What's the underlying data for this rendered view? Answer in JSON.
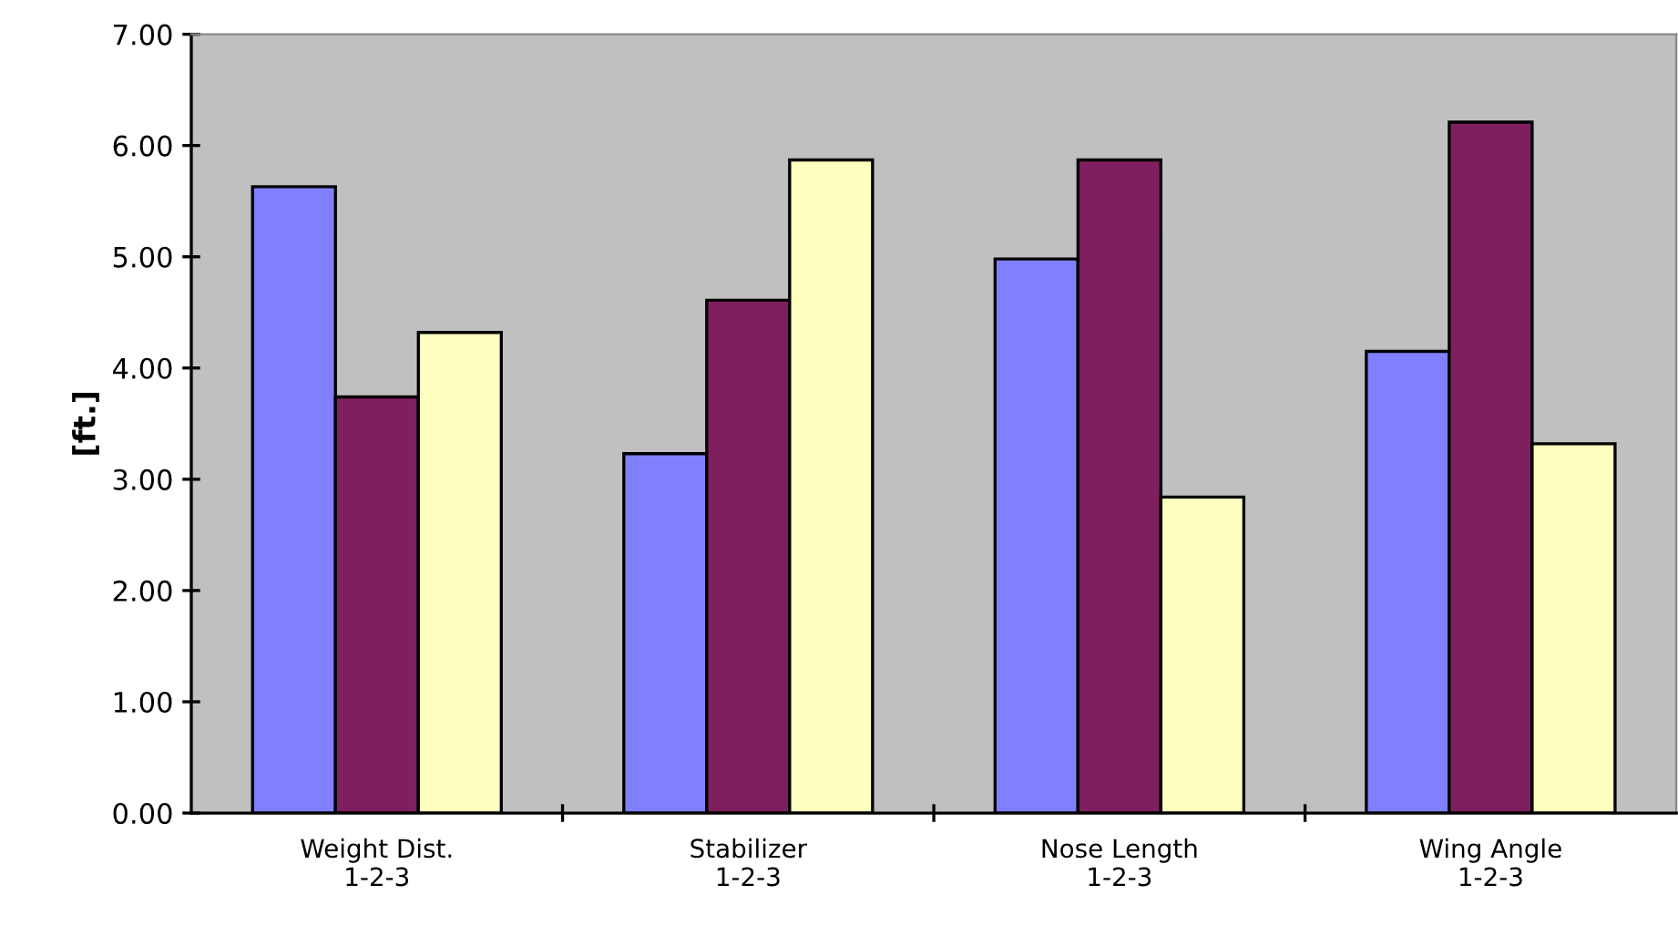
{
  "chart_data": {
    "type": "bar",
    "ylabel": "[ft.]",
    "categories": [
      "Weight Dist.\n1-2-3",
      "Stabilizer\n1-2-3",
      "Nose Length\n1-2-3",
      "Wing Angle\n1-2-3"
    ],
    "series": [
      {
        "color": "#8080ff",
        "values": [
          5.63,
          3.23,
          4.98,
          4.15
        ]
      },
      {
        "color": "#801f5f",
        "values": [
          3.74,
          4.61,
          5.87,
          6.21
        ]
      },
      {
        "color": "#ffffc0",
        "values": [
          4.32,
          5.87,
          2.84,
          3.32
        ]
      }
    ],
    "ylim": [
      0,
      7
    ],
    "yticks": [
      {
        "value": 0,
        "label": "0.00"
      },
      {
        "value": 1,
        "label": "1.00"
      },
      {
        "value": 2,
        "label": "2.00"
      },
      {
        "value": 3,
        "label": "3.00"
      },
      {
        "value": 4,
        "label": "4.00"
      },
      {
        "value": 5,
        "label": "5.00"
      },
      {
        "value": 6,
        "label": "6.00"
      },
      {
        "value": 7,
        "label": "7.00"
      }
    ],
    "grid": false
  }
}
